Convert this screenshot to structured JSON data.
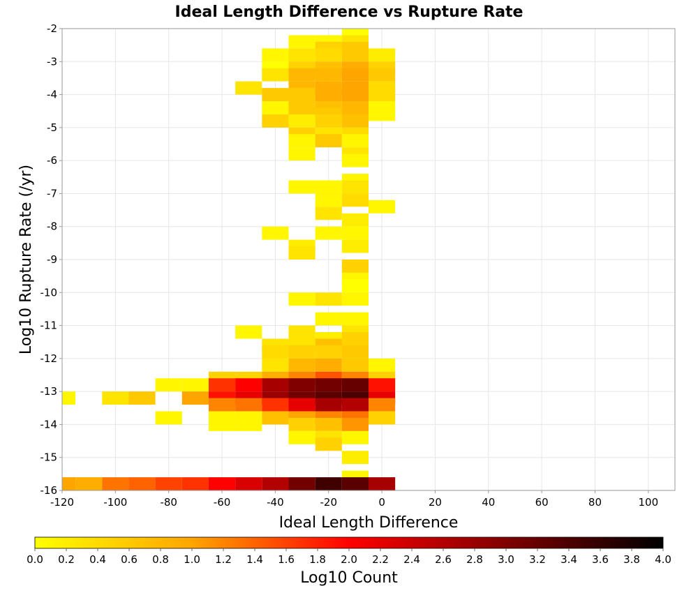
{
  "chart_data": {
    "type": "heatmap",
    "title": "Ideal Length Difference vs Rupture Rate",
    "xlabel": "Ideal Length Difference",
    "ylabel": "Log10 Rupture Rate (/yr)",
    "xlim": [
      -120,
      110
    ],
    "ylim": [
      -16,
      -2
    ],
    "x_ticks": [
      "-120",
      "-100",
      "-80",
      "-60",
      "-40",
      "-20",
      "0",
      "20",
      "40",
      "60",
      "80",
      "100"
    ],
    "y_ticks": [
      "-2",
      "-3",
      "-4",
      "-5",
      "-6",
      "-7",
      "-8",
      "-9",
      "-10",
      "-11",
      "-12",
      "-13",
      "-14",
      "-15",
      "-16"
    ],
    "grid": true,
    "bin_width_x": 10,
    "bin_height_y": 0.4,
    "colorbar": {
      "label": "Log10 Count",
      "range": [
        0.0,
        4.0
      ],
      "ticks": [
        "0.0",
        "0.2",
        "0.4",
        "0.6",
        "0.8",
        "1.0",
        "1.2",
        "1.4",
        "1.6",
        "1.8",
        "2.0",
        "2.2",
        "2.4",
        "2.6",
        "2.8",
        "3.0",
        "3.2",
        "3.4",
        "3.6",
        "3.8",
        "4.0"
      ],
      "colors": [
        "#ffff00",
        "#ffa500",
        "#ff0000",
        "#800000",
        "#000000"
      ]
    },
    "cells": [
      {
        "x": -10,
        "y": -2.0,
        "v": 0.0
      },
      {
        "x": -30,
        "y": -2.4,
        "v": 0.1
      },
      {
        "x": -20,
        "y": -2.4,
        "v": 0.1
      },
      {
        "x": -10,
        "y": -2.4,
        "v": 0.3
      },
      {
        "x": -20,
        "y": -2.6,
        "v": 0.5
      },
      {
        "x": -10,
        "y": -2.6,
        "v": 0.6
      },
      {
        "x": -40,
        "y": -2.8,
        "v": 0.1
      },
      {
        "x": -30,
        "y": -2.8,
        "v": 0.3
      },
      {
        "x": -20,
        "y": -2.8,
        "v": 0.4
      },
      {
        "x": -10,
        "y": -2.8,
        "v": 0.6
      },
      {
        "x": 0,
        "y": -2.8,
        "v": 0.2
      },
      {
        "x": -40,
        "y": -3.2,
        "v": 0.0
      },
      {
        "x": -30,
        "y": -3.2,
        "v": 0.5
      },
      {
        "x": -20,
        "y": -3.2,
        "v": 0.7
      },
      {
        "x": -10,
        "y": -3.2,
        "v": 0.9
      },
      {
        "x": 0,
        "y": -3.2,
        "v": 0.5
      },
      {
        "x": -40,
        "y": -3.4,
        "v": 0.3
      },
      {
        "x": -30,
        "y": -3.4,
        "v": 0.8
      },
      {
        "x": -20,
        "y": -3.4,
        "v": 0.8
      },
      {
        "x": -10,
        "y": -3.4,
        "v": 1.0
      },
      {
        "x": 0,
        "y": -3.4,
        "v": 0.6
      },
      {
        "x": -50,
        "y": -3.8,
        "v": 0.3
      },
      {
        "x": -30,
        "y": -3.8,
        "v": 0.8
      },
      {
        "x": -20,
        "y": -3.8,
        "v": 0.9
      },
      {
        "x": -10,
        "y": -3.8,
        "v": 1.0
      },
      {
        "x": 0,
        "y": -3.8,
        "v": 0.4
      },
      {
        "x": -40,
        "y": -4.0,
        "v": 0.6
      },
      {
        "x": -30,
        "y": -4.0,
        "v": 0.6
      },
      {
        "x": -20,
        "y": -4.0,
        "v": 0.9
      },
      {
        "x": -10,
        "y": -4.0,
        "v": 1.0
      },
      {
        "x": 0,
        "y": -4.0,
        "v": 0.4
      },
      {
        "x": -40,
        "y": -4.4,
        "v": 0.1
      },
      {
        "x": -30,
        "y": -4.4,
        "v": 0.6
      },
      {
        "x": -20,
        "y": -4.4,
        "v": 0.7
      },
      {
        "x": -10,
        "y": -4.4,
        "v": 0.8
      },
      {
        "x": 0,
        "y": -4.4,
        "v": 0.1
      },
      {
        "x": -30,
        "y": -4.6,
        "v": 0.6
      },
      {
        "x": -20,
        "y": -4.6,
        "v": 0.6
      },
      {
        "x": -10,
        "y": -4.6,
        "v": 0.8
      },
      {
        "x": 0,
        "y": -4.6,
        "v": 0.1
      },
      {
        "x": -40,
        "y": -4.8,
        "v": 0.5
      },
      {
        "x": -30,
        "y": -4.8,
        "v": 0.2
      },
      {
        "x": -20,
        "y": -4.8,
        "v": 0.5
      },
      {
        "x": -10,
        "y": -4.8,
        "v": 0.7
      },
      {
        "x": -30,
        "y": -5.2,
        "v": 0.5
      },
      {
        "x": -20,
        "y": -5.2,
        "v": 0.3
      },
      {
        "x": -10,
        "y": -5.2,
        "v": 0.4
      },
      {
        "x": -30,
        "y": -5.4,
        "v": 0.1
      },
      {
        "x": -20,
        "y": -5.4,
        "v": 0.6
      },
      {
        "x": -10,
        "y": -5.4,
        "v": 0.1
      },
      {
        "x": -30,
        "y": -5.8,
        "v": 0.1
      },
      {
        "x": -10,
        "y": -5.8,
        "v": 0.3
      },
      {
        "x": -10,
        "y": -6.0,
        "v": 0.1
      },
      {
        "x": -10,
        "y": -6.6,
        "v": 0.1
      },
      {
        "x": -30,
        "y": -6.8,
        "v": 0.1
      },
      {
        "x": -20,
        "y": -6.8,
        "v": 0.1
      },
      {
        "x": -10,
        "y": -6.8,
        "v": 0.3
      },
      {
        "x": -20,
        "y": -7.2,
        "v": 0.1
      },
      {
        "x": -10,
        "y": -7.2,
        "v": 0.4
      },
      {
        "x": 0,
        "y": -7.4,
        "v": 0.1
      },
      {
        "x": -20,
        "y": -7.6,
        "v": 0.3
      },
      {
        "x": -10,
        "y": -7.8,
        "v": 0.2
      },
      {
        "x": -40,
        "y": -8.2,
        "v": 0.1
      },
      {
        "x": -20,
        "y": -8.2,
        "v": 0.1
      },
      {
        "x": -10,
        "y": -8.2,
        "v": 0.1
      },
      {
        "x": -30,
        "y": -8.6,
        "v": 0.2
      },
      {
        "x": -10,
        "y": -8.6,
        "v": 0.2
      },
      {
        "x": -30,
        "y": -8.8,
        "v": 0.3
      },
      {
        "x": -10,
        "y": -9.2,
        "v": 0.5
      },
      {
        "x": -10,
        "y": -9.6,
        "v": 0.1
      },
      {
        "x": -10,
        "y": -9.8,
        "v": 0.0
      },
      {
        "x": -30,
        "y": -10.2,
        "v": 0.1
      },
      {
        "x": -20,
        "y": -10.2,
        "v": 0.3
      },
      {
        "x": -10,
        "y": -10.2,
        "v": 0.1
      },
      {
        "x": -20,
        "y": -10.8,
        "v": 0.1
      },
      {
        "x": -10,
        "y": -10.8,
        "v": 0.1
      },
      {
        "x": -50,
        "y": -11.2,
        "v": 0.1
      },
      {
        "x": -30,
        "y": -11.2,
        "v": 0.3
      },
      {
        "x": -10,
        "y": -11.2,
        "v": 0.3
      },
      {
        "x": -20,
        "y": -11.4,
        "v": 0.2
      },
      {
        "x": -10,
        "y": -11.4,
        "v": 0.5
      },
      {
        "x": -40,
        "y": -11.6,
        "v": 0.3
      },
      {
        "x": -30,
        "y": -11.6,
        "v": 0.3
      },
      {
        "x": -20,
        "y": -11.6,
        "v": 0.7
      },
      {
        "x": -10,
        "y": -11.6,
        "v": 0.5
      },
      {
        "x": -40,
        "y": -11.8,
        "v": 0.4
      },
      {
        "x": -30,
        "y": -11.8,
        "v": 0.5
      },
      {
        "x": -20,
        "y": -11.8,
        "v": 0.5
      },
      {
        "x": -10,
        "y": -11.8,
        "v": 0.6
      },
      {
        "x": -40,
        "y": -12.2,
        "v": 0.3
      },
      {
        "x": -30,
        "y": -12.2,
        "v": 0.8
      },
      {
        "x": -20,
        "y": -12.2,
        "v": 0.9
      },
      {
        "x": -10,
        "y": -12.2,
        "v": 0.6
      },
      {
        "x": 0,
        "y": -12.2,
        "v": 0.1
      },
      {
        "x": -60,
        "y": -12.6,
        "v": 0.5
      },
      {
        "x": -50,
        "y": -12.6,
        "v": 0.5
      },
      {
        "x": -40,
        "y": -12.6,
        "v": 0.9
      },
      {
        "x": -30,
        "y": -12.6,
        "v": 1.2
      },
      {
        "x": -20,
        "y": -12.6,
        "v": 1.5
      },
      {
        "x": -10,
        "y": -12.6,
        "v": 1.2
      },
      {
        "x": 0,
        "y": -12.6,
        "v": 0.5
      },
      {
        "x": -80,
        "y": -12.8,
        "v": 0.1
      },
      {
        "x": -70,
        "y": -12.8,
        "v": 0.1
      },
      {
        "x": -60,
        "y": -12.8,
        "v": 1.7
      },
      {
        "x": -50,
        "y": -12.8,
        "v": 2.0
      },
      {
        "x": -40,
        "y": -12.8,
        "v": 2.7
      },
      {
        "x": -30,
        "y": -12.8,
        "v": 3.0
      },
      {
        "x": -20,
        "y": -12.8,
        "v": 3.1
      },
      {
        "x": -10,
        "y": -12.8,
        "v": 3.2
      },
      {
        "x": 0,
        "y": -12.8,
        "v": 1.9
      },
      {
        "x": -120,
        "y": -13.2,
        "v": 0.1
      },
      {
        "x": -100,
        "y": -13.2,
        "v": 0.3
      },
      {
        "x": -90,
        "y": -13.2,
        "v": 0.6
      },
      {
        "x": -70,
        "y": -13.2,
        "v": 1.0
      },
      {
        "x": -60,
        "y": -13.2,
        "v": 1.9
      },
      {
        "x": -50,
        "y": -13.2,
        "v": 2.2
      },
      {
        "x": -40,
        "y": -13.2,
        "v": 2.8
      },
      {
        "x": -30,
        "y": -13.2,
        "v": 3.1
      },
      {
        "x": -20,
        "y": -13.2,
        "v": 3.3
      },
      {
        "x": -10,
        "y": -13.2,
        "v": 3.4
      },
      {
        "x": 0,
        "y": -13.2,
        "v": 2.2
      },
      {
        "x": -60,
        "y": -13.4,
        "v": 1.2
      },
      {
        "x": -50,
        "y": -13.4,
        "v": 1.3
      },
      {
        "x": -40,
        "y": -13.4,
        "v": 1.7
      },
      {
        "x": -30,
        "y": -13.4,
        "v": 2.2
      },
      {
        "x": -20,
        "y": -13.4,
        "v": 2.7
      },
      {
        "x": -10,
        "y": -13.4,
        "v": 2.6
      },
      {
        "x": 0,
        "y": -13.4,
        "v": 1.2
      },
      {
        "x": -80,
        "y": -13.8,
        "v": 0.1
      },
      {
        "x": -60,
        "y": -13.8,
        "v": 0.1
      },
      {
        "x": -50,
        "y": -13.8,
        "v": 0.1
      },
      {
        "x": -40,
        "y": -13.8,
        "v": 0.7
      },
      {
        "x": -30,
        "y": -13.8,
        "v": 1.0
      },
      {
        "x": -20,
        "y": -13.8,
        "v": 1.2
      },
      {
        "x": -10,
        "y": -13.8,
        "v": 1.3
      },
      {
        "x": 0,
        "y": -13.8,
        "v": 0.5
      },
      {
        "x": -60,
        "y": -14.0,
        "v": 0.1
      },
      {
        "x": -50,
        "y": -14.0,
        "v": 0.1
      },
      {
        "x": -30,
        "y": -14.0,
        "v": 0.5
      },
      {
        "x": -20,
        "y": -14.0,
        "v": 0.7
      },
      {
        "x": -10,
        "y": -14.0,
        "v": 1.1
      },
      {
        "x": -30,
        "y": -14.4,
        "v": 0.1
      },
      {
        "x": -20,
        "y": -14.4,
        "v": 0.3
      },
      {
        "x": -10,
        "y": -14.4,
        "v": 0.1
      },
      {
        "x": -20,
        "y": -14.6,
        "v": 0.5
      },
      {
        "x": -10,
        "y": -15.0,
        "v": 0.2
      },
      {
        "x": -10,
        "y": -15.6,
        "v": 0.1
      },
      {
        "x": -120,
        "y": -15.8,
        "v": 1.0
      },
      {
        "x": -110,
        "y": -15.8,
        "v": 0.9
      },
      {
        "x": -100,
        "y": -15.8,
        "v": 1.3
      },
      {
        "x": -90,
        "y": -15.8,
        "v": 1.4
      },
      {
        "x": -80,
        "y": -15.8,
        "v": 1.6
      },
      {
        "x": -70,
        "y": -15.8,
        "v": 1.7
      },
      {
        "x": -60,
        "y": -15.8,
        "v": 2.0
      },
      {
        "x": -50,
        "y": -15.8,
        "v": 2.3
      },
      {
        "x": -40,
        "y": -15.8,
        "v": 2.6
      },
      {
        "x": -30,
        "y": -15.8,
        "v": 3.1
      },
      {
        "x": -20,
        "y": -15.8,
        "v": 3.5
      },
      {
        "x": -10,
        "y": -15.8,
        "v": 3.3
      },
      {
        "x": 0,
        "y": -15.8,
        "v": 2.7
      }
    ]
  }
}
